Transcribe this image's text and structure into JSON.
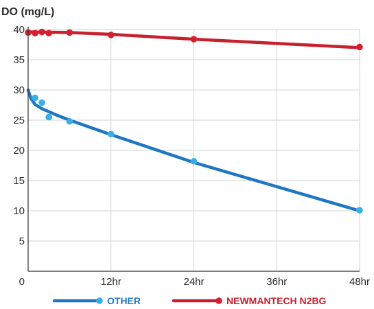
{
  "chart_data": {
    "type": "line",
    "ylabel": "DO (mg/L)",
    "xlabel": "",
    "xlim": [
      0,
      48
    ],
    "ylim": [
      0,
      40
    ],
    "x_ticks": [
      {
        "value": 0,
        "label": "0"
      },
      {
        "value": 12,
        "label": "12hr"
      },
      {
        "value": 24,
        "label": "24hr"
      },
      {
        "value": 36,
        "label": "36hr"
      },
      {
        "value": 48,
        "label": "48hr"
      }
    ],
    "y_ticks": [
      {
        "value": 5,
        "label": "5"
      },
      {
        "value": 10,
        "label": "10"
      },
      {
        "value": 15,
        "label": "15"
      },
      {
        "value": 20,
        "label": "20"
      },
      {
        "value": 25,
        "label": "25"
      },
      {
        "value": 30,
        "label": "30"
      },
      {
        "value": 35,
        "label": "35"
      },
      {
        "value": 40,
        "label": "40"
      }
    ],
    "grid": true,
    "legend_position": "bottom",
    "series": [
      {
        "name": "OTHER",
        "color": "#1f77c4",
        "point_color": "#3aaee6",
        "line": [
          [
            0,
            30.0
          ],
          [
            0.4,
            28.6
          ],
          [
            1,
            27.6
          ],
          [
            2,
            26.9
          ],
          [
            3,
            26.4
          ],
          [
            4,
            25.9
          ],
          [
            6,
            25.0
          ],
          [
            12,
            22.6
          ],
          [
            24,
            18.0
          ],
          [
            48,
            10.0
          ]
        ],
        "points": [
          [
            1,
            28.7
          ],
          [
            2,
            27.9
          ],
          [
            3,
            25.5
          ],
          [
            6,
            24.8
          ],
          [
            12,
            22.7
          ],
          [
            24,
            18.2
          ],
          [
            48,
            10.1
          ]
        ]
      },
      {
        "name": "NEWMANTECH N2BG",
        "color": "#c8202f",
        "point_color": "#d6202f",
        "line": [
          [
            0,
            39.6
          ],
          [
            6,
            39.5
          ],
          [
            12,
            39.2
          ],
          [
            24,
            38.4
          ],
          [
            48,
            37.0
          ]
        ],
        "points": [
          [
            0,
            39.5
          ],
          [
            1,
            39.4
          ],
          [
            2,
            39.6
          ],
          [
            3,
            39.4
          ],
          [
            6,
            39.5
          ],
          [
            12,
            39.1
          ],
          [
            24,
            38.4
          ],
          [
            48,
            37.1
          ]
        ]
      }
    ]
  }
}
